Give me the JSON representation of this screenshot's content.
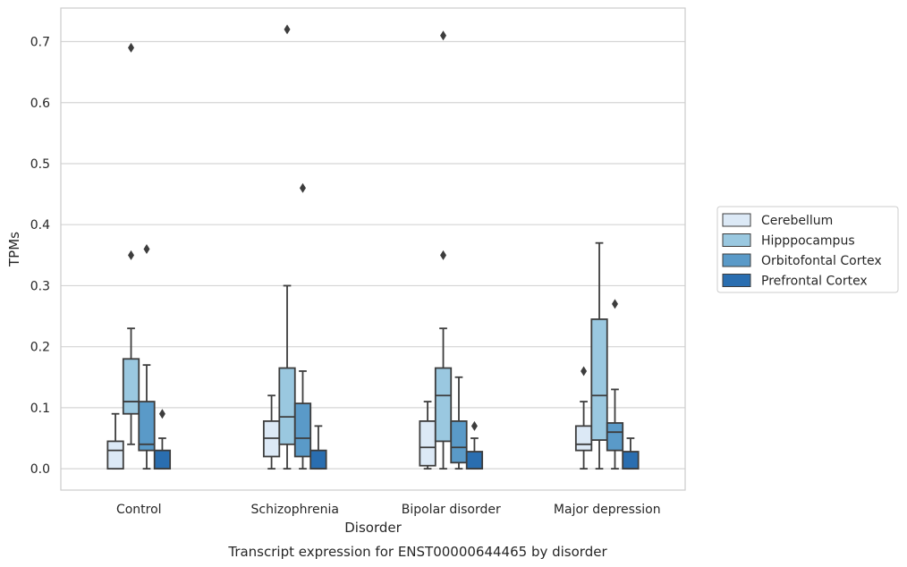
{
  "chart_data": {
    "type": "box",
    "caption": "Transcript expression for ENST00000644465 by disorder",
    "xlabel": "Disorder",
    "ylabel": "TPMs",
    "ylim": [
      -0.035,
      0.755
    ],
    "yticks": [
      "0.0",
      "0.1",
      "0.2",
      "0.3",
      "0.4",
      "0.5",
      "0.6",
      "0.7"
    ],
    "grid": "horizontal",
    "legend_position": "right",
    "categories": [
      "Control",
      "Schizophrenia",
      "Bipolar disorder",
      "Major depression"
    ],
    "series": [
      {
        "name": "Cerebellum",
        "color": "#dce9f6",
        "boxes": [
          {
            "whislo": 0.0,
            "q1": 0.0,
            "med": 0.03,
            "q3": 0.045,
            "whishi": 0.09,
            "fliers": []
          },
          {
            "whislo": 0.0,
            "q1": 0.02,
            "med": 0.05,
            "q3": 0.078,
            "whishi": 0.12,
            "fliers": []
          },
          {
            "whislo": 0.0,
            "q1": 0.005,
            "med": 0.035,
            "q3": 0.078,
            "whishi": 0.11,
            "fliers": []
          },
          {
            "whislo": 0.0,
            "q1": 0.03,
            "med": 0.04,
            "q3": 0.07,
            "whishi": 0.11,
            "fliers": [
              0.16
            ]
          }
        ]
      },
      {
        "name": "Hipppocampus",
        "color": "#9ac8e0",
        "boxes": [
          {
            "whislo": 0.04,
            "q1": 0.09,
            "med": 0.11,
            "q3": 0.18,
            "whishi": 0.23,
            "fliers": [
              0.35,
              0.69
            ]
          },
          {
            "whislo": 0.0,
            "q1": 0.04,
            "med": 0.085,
            "q3": 0.165,
            "whishi": 0.3,
            "fliers": [
              0.72
            ]
          },
          {
            "whislo": 0.0,
            "q1": 0.045,
            "med": 0.12,
            "q3": 0.165,
            "whishi": 0.23,
            "fliers": [
              0.35,
              0.71
            ]
          },
          {
            "whislo": 0.0,
            "q1": 0.047,
            "med": 0.12,
            "q3": 0.245,
            "whishi": 0.37,
            "fliers": []
          }
        ]
      },
      {
        "name": "Orbitofontal Cortex",
        "color": "#5a9ac8",
        "boxes": [
          {
            "whislo": 0.0,
            "q1": 0.03,
            "med": 0.04,
            "q3": 0.11,
            "whishi": 0.17,
            "fliers": [
              0.36
            ]
          },
          {
            "whislo": 0.0,
            "q1": 0.02,
            "med": 0.05,
            "q3": 0.107,
            "whishi": 0.16,
            "fliers": [
              0.46
            ]
          },
          {
            "whislo": 0.0,
            "q1": 0.01,
            "med": 0.035,
            "q3": 0.078,
            "whishi": 0.15,
            "fliers": []
          },
          {
            "whislo": 0.0,
            "q1": 0.03,
            "med": 0.06,
            "q3": 0.075,
            "whishi": 0.13,
            "fliers": [
              0.27
            ]
          }
        ]
      },
      {
        "name": "Prefrontal Cortex",
        "color": "#2a6eb0",
        "boxes": [
          {
            "whislo": 0.0,
            "q1": 0.0,
            "med": 0.0,
            "q3": 0.03,
            "whishi": 0.05,
            "fliers": [
              0.09
            ]
          },
          {
            "whislo": 0.0,
            "q1": 0.0,
            "med": 0.0,
            "q3": 0.03,
            "whishi": 0.07,
            "fliers": []
          },
          {
            "whislo": 0.0,
            "q1": 0.0,
            "med": 0.0,
            "q3": 0.028,
            "whishi": 0.05,
            "fliers": [
              0.07
            ]
          },
          {
            "whislo": 0.0,
            "q1": 0.0,
            "med": 0.0,
            "q3": 0.028,
            "whishi": 0.05,
            "fliers": []
          }
        ]
      }
    ]
  }
}
